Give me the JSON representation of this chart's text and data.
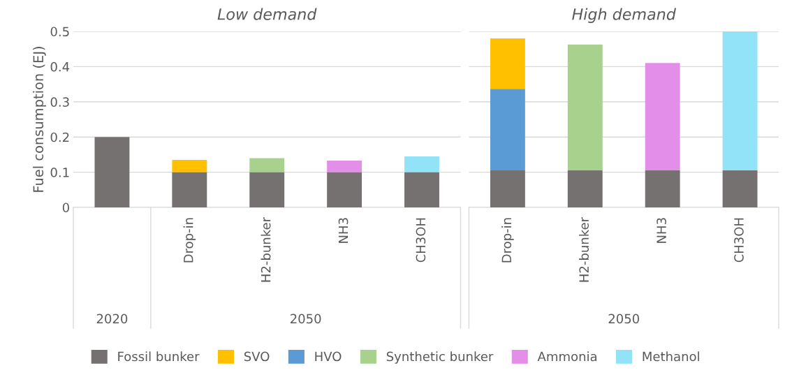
{
  "chart_data": [
    {
      "type": "bar",
      "title": "Low demand",
      "ylabel": "Fuel consumption (EJ)",
      "stacked": true,
      "categories": [
        null,
        "Drop-in",
        "H2-bunker",
        "NH3",
        "CH3OH"
      ],
      "ylim": [
        0,
        0.5
      ],
      "yticks": [
        0,
        0.1,
        0.2,
        0.3,
        0.4,
        0.5
      ],
      "grid": "y",
      "legend": "bottom",
      "annotations": [
        "2020",
        "2050"
      ],
      "series": [
        {
          "name": "Fossil bunker",
          "color": "#767171",
          "values": [
            0.2,
            0.1,
            0.1,
            0.1,
            0.1
          ]
        },
        {
          "name": "SVO",
          "color": "#ffc000",
          "values": [
            null,
            0.035,
            null,
            null,
            null
          ]
        },
        {
          "name": "HVO",
          "color": "#5b9bd5",
          "values": [
            null,
            null,
            null,
            null,
            null
          ]
        },
        {
          "name": "Synthetic bunker",
          "color": "#a9d18e",
          "values": [
            null,
            null,
            0.04,
            null,
            null
          ]
        },
        {
          "name": "Ammonia",
          "color": "#e38ee8",
          "values": [
            null,
            null,
            null,
            0.033,
            null
          ]
        },
        {
          "name": "Methanol",
          "color": "#93e3f8",
          "values": [
            null,
            null,
            null,
            null,
            0.045
          ]
        }
      ]
    },
    {
      "type": "bar",
      "title": "High demand",
      "stacked": true,
      "categories": [
        "Drop-in",
        "H2-bunker",
        "NH3",
        "CH3OH"
      ],
      "ylim": [
        0,
        0.5
      ],
      "yticks": [
        0,
        0.1,
        0.2,
        0.3,
        0.4,
        0.5
      ],
      "grid": "y",
      "tick_labels": "x",
      "annotations": [
        "2050"
      ],
      "series": [
        {
          "color": "#767171",
          "values": [
            0.105,
            0.105,
            0.105,
            0.105
          ]
        },
        {
          "color": "#5b9bd5",
          "values": [
            0.232,
            null,
            null,
            null
          ]
        },
        {
          "color": "#ffc000",
          "values": [
            0.143,
            null,
            null,
            null
          ]
        },
        {
          "color": "#a9d18e",
          "values": [
            null,
            0.358,
            null,
            null
          ]
        },
        {
          "color": "#e38ee8",
          "values": [
            null,
            null,
            0.305,
            null
          ]
        },
        {
          "color": "#93e3f8",
          "values": [
            null,
            null,
            null,
            0.395
          ]
        }
      ]
    }
  ]
}
